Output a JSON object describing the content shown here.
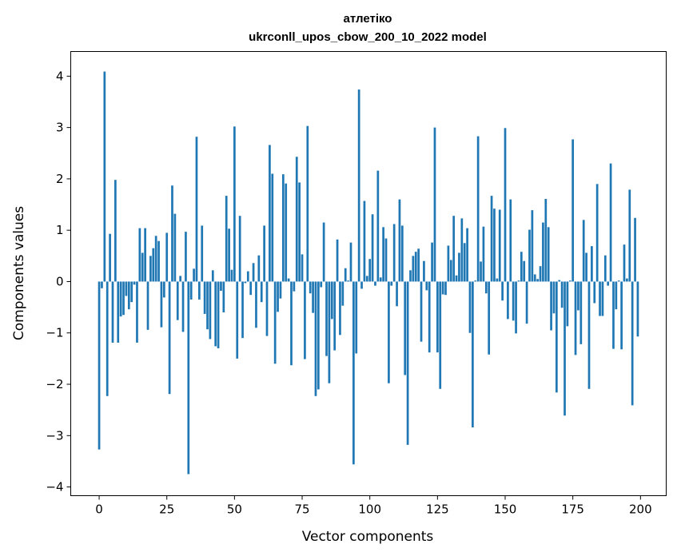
{
  "chart_data": {
    "type": "bar",
    "title_line1": "атлетіко",
    "title_line2": "ukrconll_upos_cbow_200_10_2022 model",
    "xlabel": "Vector components",
    "ylabel": "Components values",
    "xlim": [
      -10.5,
      209.5
    ],
    "ylim": [
      -4.17,
      4.48
    ],
    "xticks": [
      0,
      25,
      50,
      75,
      100,
      125,
      150,
      175,
      200
    ],
    "yticks": [
      -4,
      -3,
      -2,
      -1,
      0,
      1,
      2,
      3,
      4
    ],
    "ytick_labels": [
      "−4",
      "−3",
      "−2",
      "−1",
      "0",
      "1",
      "2",
      "3",
      "4"
    ],
    "grid": false,
    "bar_color": "#1f77b4",
    "values": [
      -3.27,
      -0.13,
      4.09,
      -2.23,
      0.93,
      -1.19,
      1.98,
      -1.19,
      -0.68,
      -0.65,
      -0.28,
      -0.54,
      -0.4,
      -0.06,
      -1.19,
      1.04,
      0.56,
      1.04,
      -0.94,
      0.5,
      0.65,
      0.89,
      0.79,
      -0.89,
      -0.31,
      0.95,
      -2.19,
      1.87,
      1.32,
      -0.75,
      0.11,
      -0.98,
      0.97,
      -3.75,
      -0.35,
      0.25,
      2.82,
      -0.35,
      1.09,
      -0.63,
      -0.93,
      -1.12,
      0.22,
      -1.26,
      -1.3,
      -0.18,
      -0.6,
      1.67,
      1.03,
      0.23,
      3.02,
      -1.5,
      1.28,
      -1.1,
      -0.03,
      0.2,
      -0.26,
      0.36,
      -0.9,
      0.51,
      -0.4,
      1.09,
      -1.06,
      2.66,
      2.1,
      -1.6,
      -0.59,
      -0.33,
      2.09,
      1.91,
      0.06,
      -1.63,
      -0.19,
      2.43,
      1.93,
      0.53,
      -1.51,
      3.03,
      -0.23,
      -0.61,
      -2.23,
      -2.1,
      -0.11,
      1.15,
      -1.45,
      -1.98,
      -0.73,
      -1.34,
      0.82,
      -1.04,
      -0.47,
      0.26,
      0.02,
      0.76,
      -3.56,
      -1.4,
      3.74,
      -0.14,
      1.57,
      0.11,
      0.44,
      1.31,
      -0.08,
      2.16,
      0.08,
      1.06,
      0.84,
      -1.98,
      -0.08,
      1.12,
      -0.48,
      1.6,
      1.09,
      -1.82,
      -3.18,
      0.22,
      0.5,
      0.58,
      0.64,
      -1.17,
      0.4,
      -0.17,
      -1.38,
      0.76,
      3.0,
      -1.38,
      -2.09,
      -0.25,
      -0.26,
      0.7,
      0.42,
      1.28,
      0.12,
      0.56,
      1.23,
      0.75,
      1.04,
      -1.0,
      -2.84,
      0.02,
      2.83,
      0.39,
      1.07,
      -0.23,
      -1.42,
      1.67,
      1.42,
      0.06,
      1.4,
      -0.37,
      2.99,
      -0.73,
      1.6,
      -0.76,
      -1.01,
      0.02,
      0.58,
      0.4,
      -0.82,
      1.01,
      1.39,
      0.14,
      0.05,
      0.3,
      1.15,
      1.61,
      1.06,
      -0.95,
      -0.62,
      -2.16,
      0.03,
      -0.51,
      -2.61,
      -0.87,
      0.02,
      2.77,
      -1.43,
      -0.56,
      -1.22,
      1.2,
      0.56,
      -2.09,
      0.69,
      -0.42,
      1.9,
      -0.67,
      -0.67,
      0.51,
      -0.08,
      2.3,
      -1.31,
      -0.54,
      0.02,
      -1.32,
      0.72,
      0.06,
      1.79,
      -2.41,
      1.24,
      -1.07
    ]
  }
}
